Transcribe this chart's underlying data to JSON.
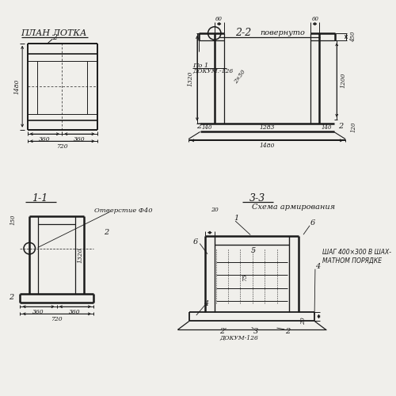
{
  "bg": "#f0efeb",
  "lc": "#1a1a1a",
  "title_plan": "ПЛАН ЛОТКА",
  "title_22_a": "2-2",
  "title_22_b": "повернуто",
  "title_11": "1-1",
  "title_33": "3-3",
  "sub_33": "Схема армирования",
  "note_11": "Отверстие Ф40",
  "shag": "ШАГ 400×300 В ШАХ-\nМАТНОМ ПОРЯДКЕ",
  "po1a": "По 1",
  "po1b": "ДОКУМ.-126",
  "dokum": "ДОКУМ-126",
  "d_1480": "1480",
  "d_720": "720",
  "d_360": "360",
  "d_1283": "1283",
  "d_140": "140",
  "d_1320": "1320",
  "d_1200": "1200",
  "d_450": "450",
  "d_120": "120",
  "d_60": "60",
  "d_2x50": "2×50",
  "d_150": "150",
  "d_20": "20",
  "d_75": "75"
}
